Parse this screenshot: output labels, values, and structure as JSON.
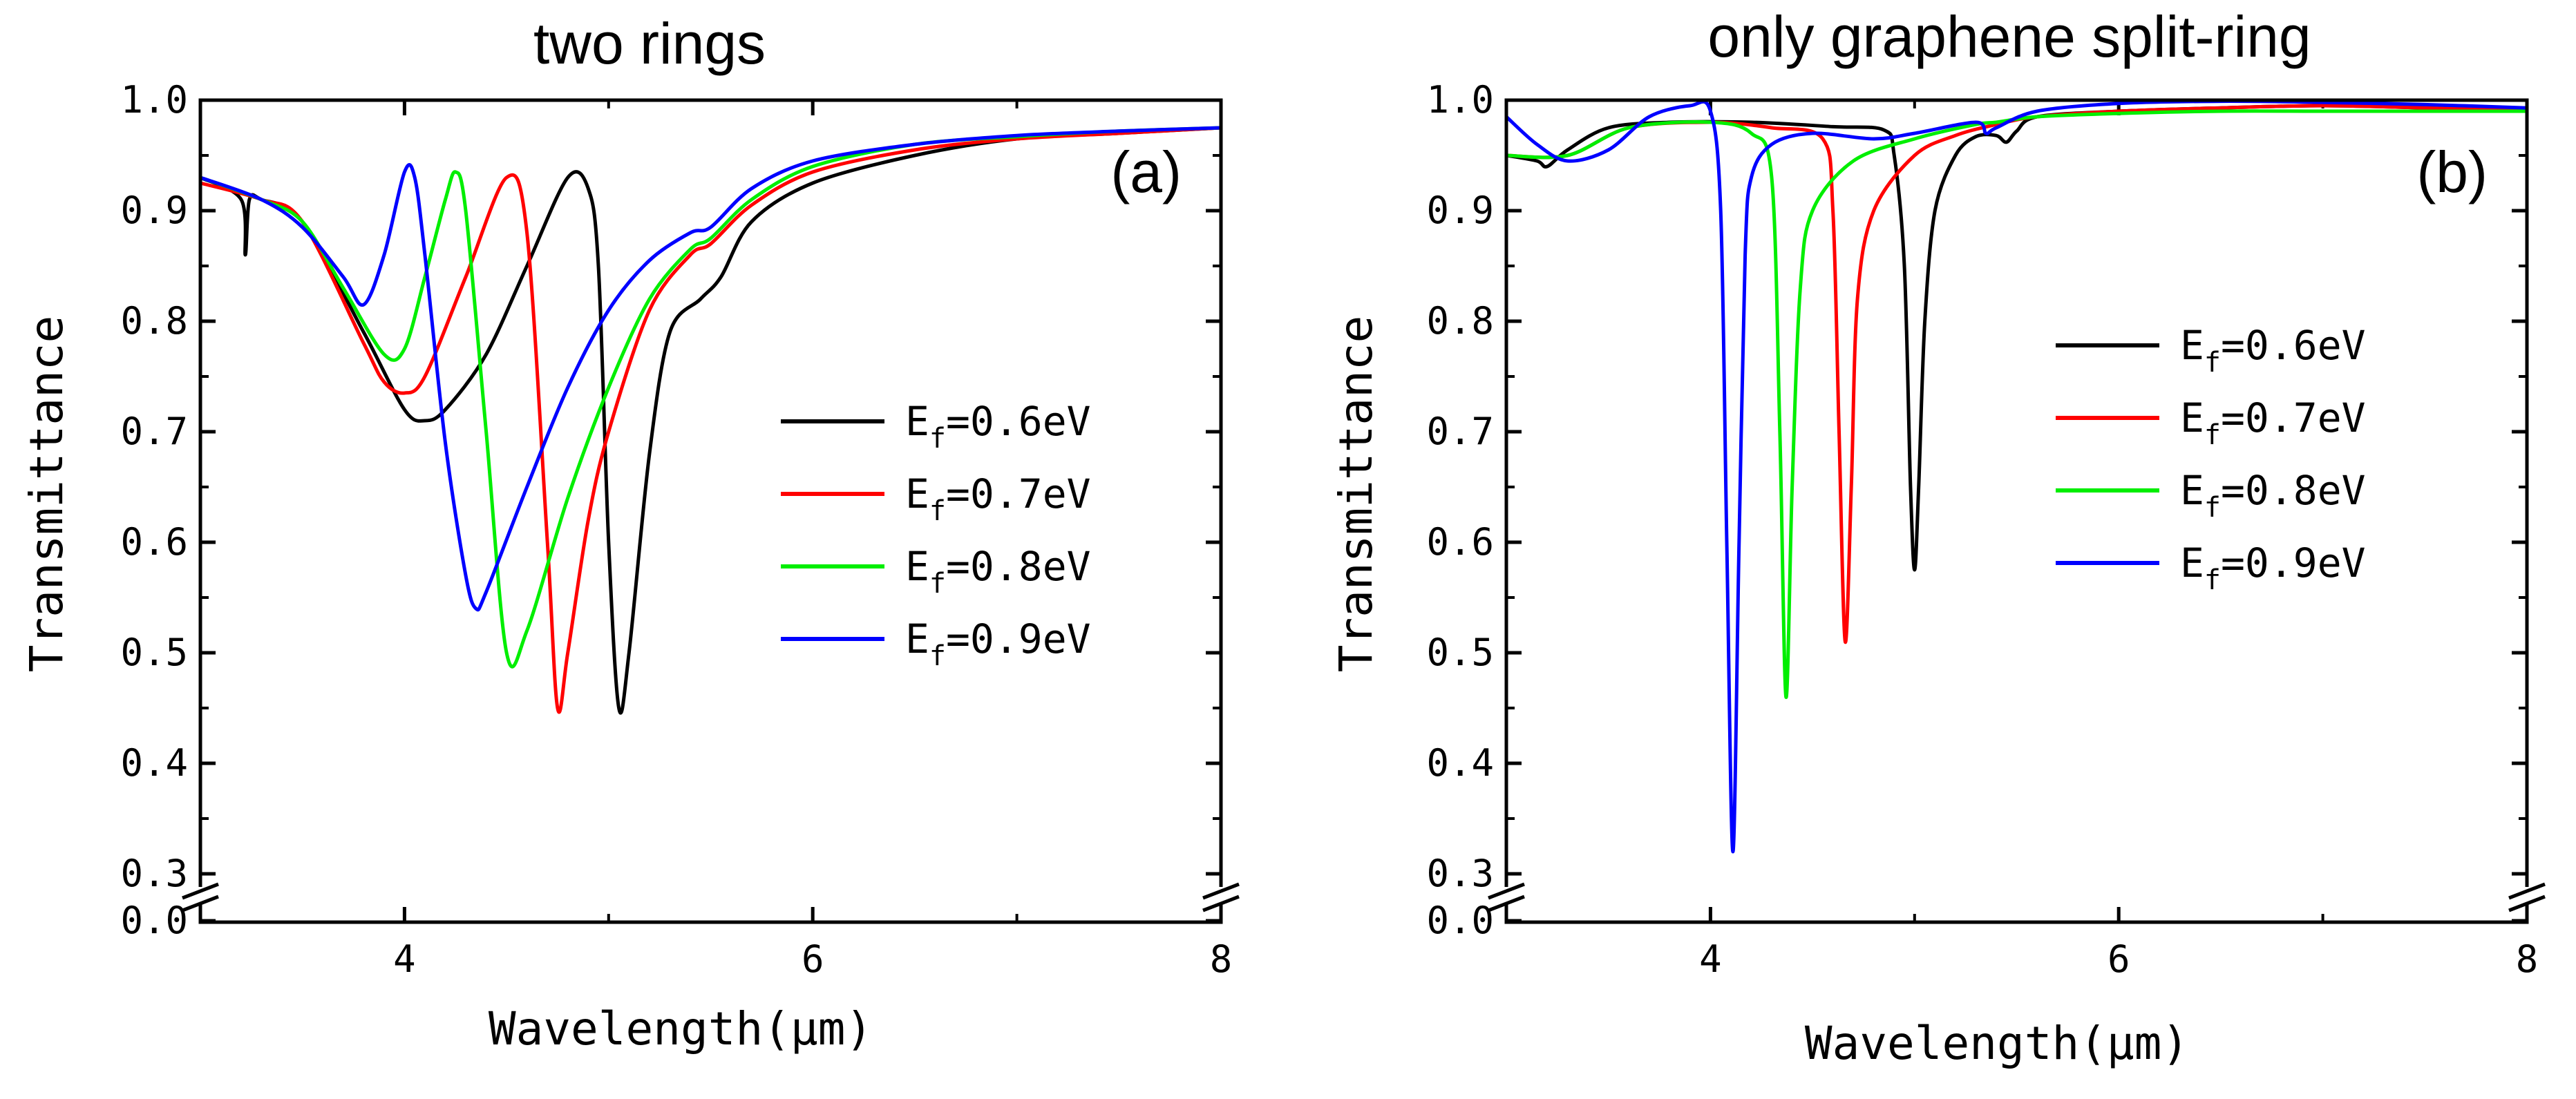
{
  "chart_data": [
    {
      "type": "line",
      "panel": "(a)",
      "title": "two rings",
      "xlabel": "Wavelength(μm)",
      "ylabel": "Transmittance",
      "xlim": [
        3,
        8
      ],
      "ylim": [
        0.3,
        1.0
      ],
      "axis_break": "y between 0.0 and 0.3",
      "x_ticks": [
        "4",
        "6",
        "8"
      ],
      "y_ticks": [
        "0.0",
        "0.3",
        "0.4",
        "0.5",
        "0.6",
        "0.7",
        "0.8",
        "0.9",
        "1.0"
      ],
      "legend_position": "center-right",
      "series": [
        {
          "name": "Ef=0.6eV",
          "color": "#000000",
          "x": [
            3.0,
            3.2,
            3.22,
            3.24,
            3.3,
            3.5,
            3.8,
            4.0,
            4.1,
            4.2,
            4.4,
            4.6,
            4.8,
            4.9,
            4.95,
            5.0,
            5.05,
            5.1,
            5.2,
            5.3,
            5.45,
            5.55,
            5.7,
            6.0,
            6.5,
            7.0,
            7.5,
            8.0
          ],
          "y": [
            0.93,
            0.91,
            0.86,
            0.91,
            0.91,
            0.89,
            0.79,
            0.72,
            0.71,
            0.72,
            0.77,
            0.85,
            0.93,
            0.92,
            0.85,
            0.6,
            0.45,
            0.5,
            0.68,
            0.79,
            0.82,
            0.84,
            0.89,
            0.925,
            0.95,
            0.965,
            0.97,
            0.975
          ]
        },
        {
          "name": "Ef=0.7eV",
          "color": "#ff0000",
          "x": [
            3.0,
            3.3,
            3.5,
            3.8,
            3.9,
            4.0,
            4.1,
            4.3,
            4.5,
            4.6,
            4.7,
            4.75,
            4.8,
            4.9,
            5.0,
            5.2,
            5.4,
            5.5,
            5.7,
            6.0,
            6.5,
            7.0,
            7.5,
            8.0
          ],
          "y": [
            0.925,
            0.91,
            0.89,
            0.78,
            0.745,
            0.735,
            0.75,
            0.84,
            0.93,
            0.88,
            0.6,
            0.45,
            0.5,
            0.62,
            0.7,
            0.81,
            0.86,
            0.87,
            0.905,
            0.935,
            0.955,
            0.965,
            0.97,
            0.975
          ]
        },
        {
          "name": "Ef=0.8eV",
          "color": "#00ee00",
          "x": [
            3.0,
            3.3,
            3.5,
            3.7,
            3.9,
            4.0,
            4.1,
            4.2,
            4.25,
            4.3,
            4.4,
            4.5,
            4.6,
            4.8,
            5.0,
            5.2,
            5.4,
            5.5,
            5.7,
            6.0,
            6.5,
            7.0,
            7.5,
            8.0
          ],
          "y": [
            0.93,
            0.91,
            0.89,
            0.83,
            0.77,
            0.775,
            0.84,
            0.91,
            0.935,
            0.9,
            0.7,
            0.5,
            0.52,
            0.64,
            0.74,
            0.82,
            0.865,
            0.875,
            0.91,
            0.94,
            0.96,
            0.967,
            0.972,
            0.975
          ]
        },
        {
          "name": "Ef=0.9eV",
          "color": "#0000ff",
          "x": [
            3.0,
            3.3,
            3.5,
            3.7,
            3.8,
            3.9,
            4.0,
            4.05,
            4.1,
            4.2,
            4.3,
            4.35,
            4.4,
            4.6,
            4.8,
            5.0,
            5.2,
            5.4,
            5.5,
            5.7,
            6.0,
            6.5,
            7.0,
            7.5,
            8.0
          ],
          "y": [
            0.93,
            0.91,
            0.885,
            0.84,
            0.815,
            0.86,
            0.935,
            0.93,
            0.86,
            0.69,
            0.57,
            0.54,
            0.555,
            0.65,
            0.74,
            0.81,
            0.855,
            0.88,
            0.885,
            0.92,
            0.945,
            0.96,
            0.968,
            0.972,
            0.975
          ]
        }
      ]
    },
    {
      "type": "line",
      "panel": "(b)",
      "title": "only graphene split-ring",
      "xlabel": "Wavelength(μm)",
      "ylabel": "Transmittance",
      "xlim": [
        3,
        8
      ],
      "ylim": [
        0.3,
        1.0
      ],
      "axis_break": "y between 0.0 and 0.3",
      "x_ticks": [
        "4",
        "6",
        "8"
      ],
      "y_ticks": [
        "0.0",
        "0.3",
        "0.4",
        "0.5",
        "0.6",
        "0.7",
        "0.8",
        "0.9",
        "1.0"
      ],
      "legend_position": "center-right",
      "series": [
        {
          "name": "Ef=0.6eV",
          "color": "#000000",
          "x": [
            3.0,
            3.15,
            3.2,
            3.3,
            3.5,
            3.8,
            4.2,
            4.6,
            4.85,
            4.9,
            4.95,
            4.98,
            5.0,
            5.02,
            5.05,
            5.1,
            5.2,
            5.3,
            5.4,
            5.45,
            5.5,
            5.6,
            6.0,
            6.5,
            7.0,
            7.5,
            8.0
          ],
          "y": [
            0.95,
            0.945,
            0.94,
            0.955,
            0.975,
            0.98,
            0.98,
            0.976,
            0.973,
            0.95,
            0.85,
            0.65,
            0.575,
            0.65,
            0.8,
            0.9,
            0.95,
            0.967,
            0.968,
            0.962,
            0.972,
            0.985,
            0.99,
            0.993,
            0.995,
            0.993,
            0.99
          ]
        },
        {
          "name": "Ef=0.7eV",
          "color": "#ff0000",
          "x": [
            3.0,
            3.3,
            3.6,
            4.0,
            4.3,
            4.55,
            4.6,
            4.63,
            4.66,
            4.69,
            4.72,
            4.8,
            5.0,
            5.2,
            5.4,
            5.6,
            6.0,
            6.5,
            7.0,
            7.5,
            8.0
          ],
          "y": [
            0.95,
            0.95,
            0.975,
            0.98,
            0.975,
            0.965,
            0.9,
            0.7,
            0.51,
            0.65,
            0.82,
            0.9,
            0.95,
            0.968,
            0.978,
            0.985,
            0.99,
            0.993,
            0.995,
            0.993,
            0.99
          ]
        },
        {
          "name": "Ef=0.8eV",
          "color": "#00ee00",
          "x": [
            3.0,
            3.3,
            3.6,
            4.0,
            4.2,
            4.3,
            4.34,
            4.37,
            4.4,
            4.44,
            4.5,
            4.7,
            5.0,
            5.3,
            5.4,
            5.6,
            6.0,
            6.5,
            7.0,
            7.5,
            8.0
          ],
          "y": [
            0.95,
            0.95,
            0.975,
            0.98,
            0.97,
            0.93,
            0.7,
            0.46,
            0.65,
            0.83,
            0.9,
            0.945,
            0.965,
            0.978,
            0.98,
            0.985,
            0.988,
            0.99,
            0.99,
            0.99,
            0.99
          ]
        },
        {
          "name": "Ef=0.9eV",
          "color": "#0000ff",
          "x": [
            3.0,
            3.15,
            3.3,
            3.5,
            3.7,
            3.9,
            4.0,
            4.05,
            4.08,
            4.11,
            4.14,
            4.17,
            4.2,
            4.3,
            4.5,
            4.8,
            5.0,
            5.3,
            5.35,
            5.4,
            5.6,
            6.0,
            6.5,
            7.0,
            7.5,
            8.0
          ],
          "y": [
            0.985,
            0.96,
            0.945,
            0.955,
            0.985,
            0.995,
            0.99,
            0.9,
            0.6,
            0.32,
            0.6,
            0.86,
            0.93,
            0.96,
            0.97,
            0.965,
            0.97,
            0.98,
            0.97,
            0.975,
            0.99,
            0.997,
            0.999,
            0.998,
            0.996,
            0.993
          ]
        }
      ]
    }
  ]
}
